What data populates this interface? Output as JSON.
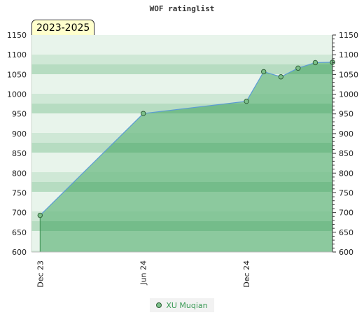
{
  "chart_data": {
    "type": "area",
    "title": "WOF ratinglist",
    "period_label": "2023-2025",
    "ylim": [
      600,
      1150
    ],
    "y_ticks": [
      600,
      650,
      700,
      750,
      800,
      850,
      900,
      950,
      1000,
      1050,
      1100,
      1150
    ],
    "x_ticks": [
      {
        "label": "Dec 23",
        "x": 0
      },
      {
        "label": "Jun 24",
        "x": 6
      },
      {
        "label": "Dec 24",
        "x": 12
      }
    ],
    "xlim": [
      -0.5,
      17
    ],
    "series": [
      {
        "name": "XU Muqian",
        "x": [
          0,
          6,
          12,
          13,
          14,
          15,
          16,
          17
        ],
        "values": [
          693,
          951,
          982,
          1057,
          1044,
          1066,
          1080,
          1081
        ]
      }
    ],
    "colors": {
      "line": "#5b9bd5",
      "marker_fill": "#7cc08a",
      "marker_stroke": "#2f5f37",
      "area_fill": "#6dbb84",
      "band_light": "#e8f4eb",
      "band_mid": "#cfe8d6",
      "band_dark": "#b6dcc1",
      "legend_text": "#3a9a55"
    },
    "legend_position": "bottom-center",
    "grid": false
  }
}
